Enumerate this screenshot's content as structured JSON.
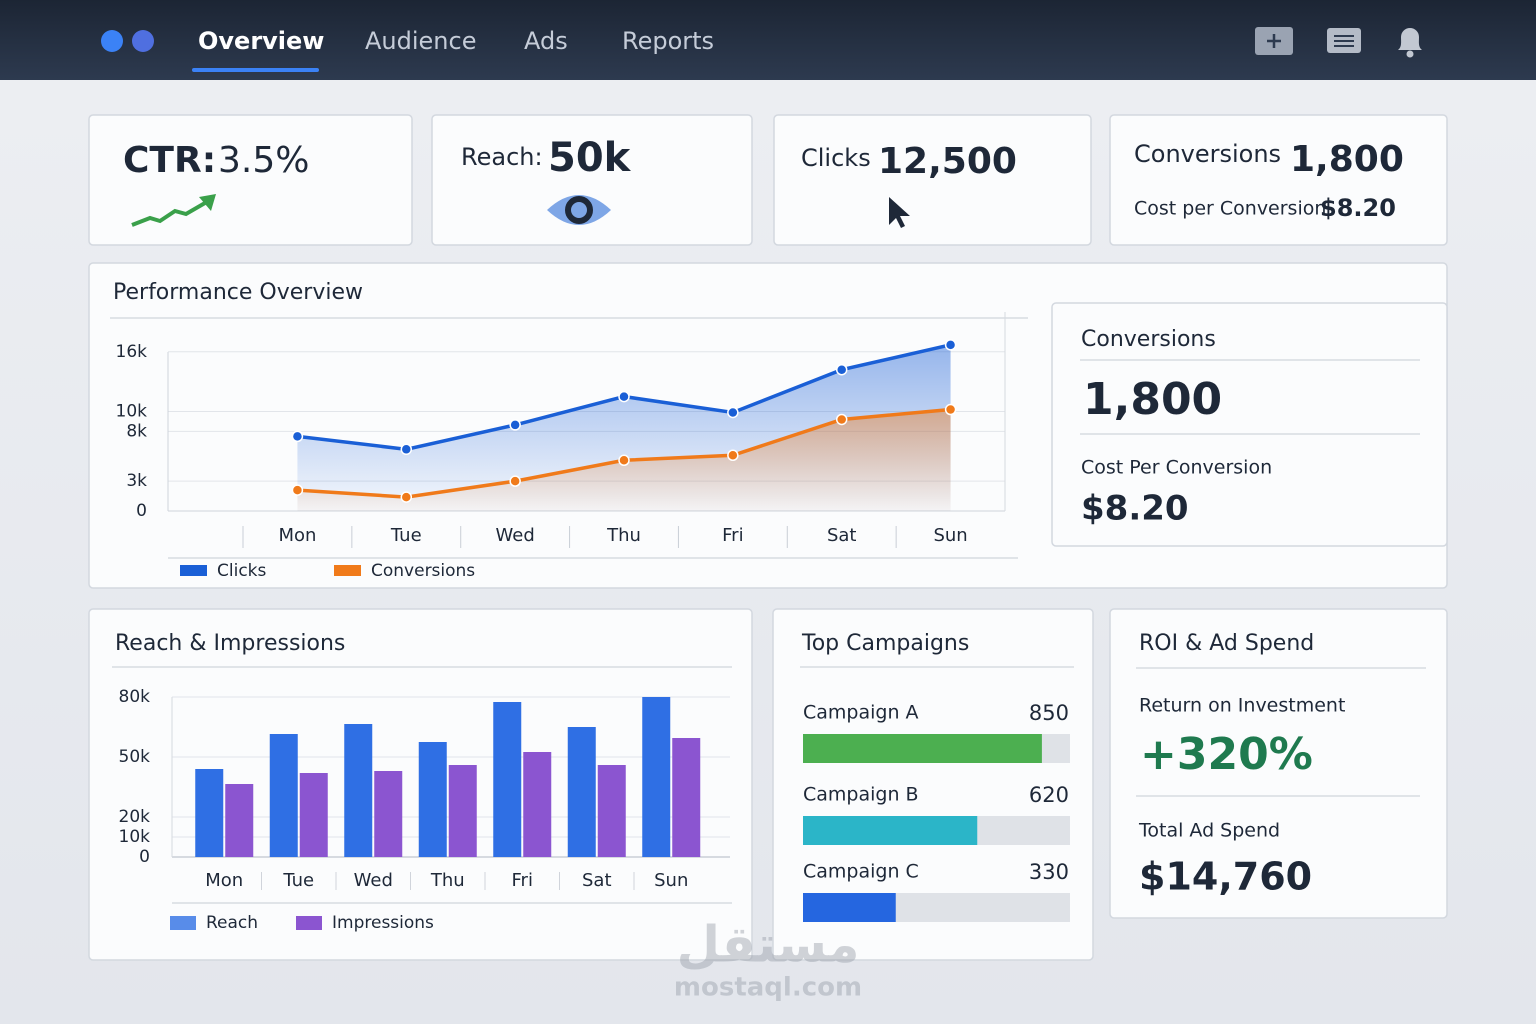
{
  "nav": {
    "tabs": [
      "Overview",
      "Audience",
      "Ads",
      "Reports"
    ]
  },
  "kpis": [
    {
      "label": "CTR:",
      "value": "3.5%"
    },
    {
      "label": "Reach:",
      "value": "50k"
    },
    {
      "label": "Clicks",
      "value": "12,500"
    },
    {
      "label": "Conversions",
      "value": "1,800",
      "sub_label": "Cost per Conversion",
      "sub_value": "$8.20"
    }
  ],
  "conversions_panel": {
    "title": "Conversions",
    "value": "1,800",
    "cost_label": "Cost Per Conversion",
    "cost_value": "$8.20"
  },
  "roi": {
    "title": "ROI & Ad Spend",
    "roi_label": "Return on Investment",
    "roi_value": "+320%",
    "spend_label": "Total Ad Spend",
    "spend_value": "$14,760"
  },
  "watermark": {
    "arabic": "مستقل",
    "latin": "mostaql.com"
  },
  "chart_data": [
    {
      "type": "line",
      "title": "Performance Overview",
      "categories": [
        "Mon",
        "Tue",
        "Wed",
        "Thu",
        "Fri",
        "Sat",
        "Sun"
      ],
      "series": [
        {
          "name": "Clicks",
          "color": "#1a5fd6",
          "values": [
            7500,
            6200,
            8650,
            11500,
            9900,
            14200,
            16700
          ]
        },
        {
          "name": "Conversions",
          "color": "#f07a1a",
          "values": [
            2100,
            1400,
            3000,
            5100,
            5600,
            9200,
            10200
          ]
        }
      ],
      "ylim": [
        0,
        20000
      ],
      "yticks": [
        0,
        {
          "value": 3000,
          "label": "3k"
        },
        {
          "value": 8000,
          "label": "8k"
        },
        {
          "value": 10000,
          "label": "10k"
        },
        {
          "value": 16000,
          "label": "16k"
        }
      ],
      "grid": true
    },
    {
      "type": "bar",
      "title": "Reach & Impressions",
      "categories": [
        "Mon",
        "Tue",
        "Wed",
        "Thu",
        "Fri",
        "Sat",
        "Sun"
      ],
      "series": [
        {
          "name": "Reach",
          "color": "#2f6fe4",
          "values": [
            44000,
            61500,
            66500,
            57500,
            77500,
            65000,
            80000
          ]
        },
        {
          "name": "Impressions",
          "color": "#8b55d0",
          "values": [
            36500,
            42000,
            43000,
            46000,
            52500,
            46000,
            59500
          ]
        }
      ],
      "ylim": [
        0,
        80000
      ],
      "yticks": [
        0,
        {
          "value": 10000,
          "label": "10k"
        },
        {
          "value": 20000,
          "label": "20k"
        },
        {
          "value": 50000,
          "label": "50k"
        },
        {
          "value": 80000,
          "label": "80k"
        }
      ],
      "grid": true
    },
    {
      "type": "hbar",
      "title": "Top Campaigns",
      "categories": [
        "Campaign A",
        "Campaign B",
        "Campaign C"
      ],
      "values": [
        850,
        620,
        330
      ],
      "colors": [
        "#4caf50",
        "#2bb5c8",
        "#2566e0"
      ],
      "xlim": [
        0,
        950
      ]
    }
  ]
}
